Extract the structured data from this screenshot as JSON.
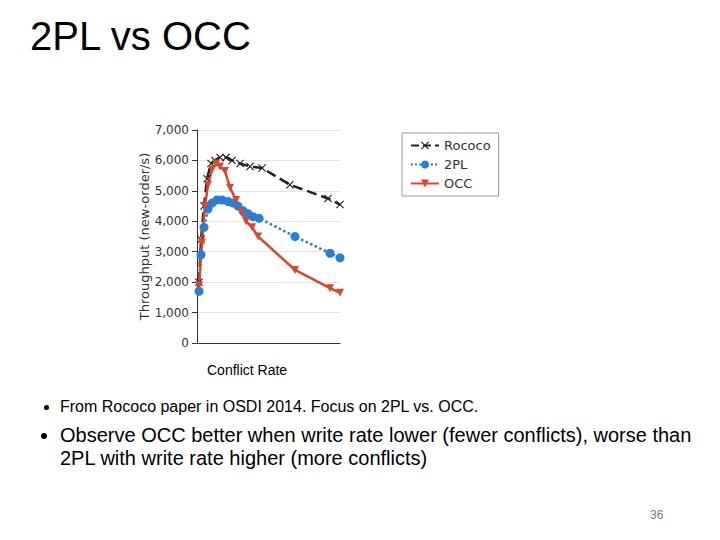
{
  "title": "2PL vs OCC",
  "chart_data": {
    "type": "line",
    "x_label": "Conflict Rate",
    "y_label": "Throughput (new-order/s)",
    "xlim": [
      0,
      100
    ],
    "ylim": [
      0,
      7000
    ],
    "yticks": [
      0,
      1000,
      2000,
      3000,
      4000,
      5000,
      6000,
      7000
    ],
    "tick_labels": "y",
    "grid": true,
    "legend": "right",
    "series": [
      {
        "name": "Rococo",
        "color": "#222222",
        "marker": "x",
        "line_style": "dashed",
        "x": [
          1.4,
          2.8,
          4.9,
          7.0,
          9.8,
          12.6,
          16.1,
          20.3,
          24.5,
          30.1,
          37.1,
          45.5,
          65.0,
          91.6,
          100
        ],
        "values": [
          2000,
          3400,
          4500,
          5400,
          5900,
          6000,
          6100,
          6100,
          6000,
          5900,
          5800,
          5750,
          5200,
          4750,
          4550
        ]
      },
      {
        "name": "2PL",
        "color": "#2a7fd4",
        "marker": "circle",
        "line_style": "dotted",
        "x": [
          1.4,
          2.8,
          4.9,
          7.7,
          10.5,
          14.0,
          17.5,
          21.7,
          25.2,
          28.7,
          32.2,
          35.7,
          39.2,
          43.4,
          68.5,
          93.0,
          100
        ],
        "values": [
          1700,
          2900,
          3800,
          4400,
          4600,
          4700,
          4700,
          4650,
          4600,
          4500,
          4350,
          4250,
          4150,
          4100,
          3500,
          2950,
          2800
        ]
      },
      {
        "name": "OCC",
        "color": "#d9482b",
        "marker": "triangle-down",
        "line_style": "solid",
        "x": [
          1.4,
          3.5,
          5.6,
          7.7,
          10.5,
          13.3,
          16.1,
          19.6,
          23.1,
          27.3,
          30.8,
          34.3,
          38.5,
          42.7,
          68.5,
          93.0,
          100
        ],
        "values": [
          1900,
          3300,
          4500,
          5200,
          5700,
          5900,
          5800,
          5650,
          5100,
          4700,
          4300,
          4000,
          3800,
          3500,
          2400,
          1800,
          1650
        ]
      }
    ]
  },
  "bullets": [
    "From Rococo paper in OSDI 2014.  Focus on 2PL vs. OCC.",
    "Observe OCC better when write rate lower (fewer conflicts), worse than 2PL with write rate higher (more conflicts)"
  ],
  "page_number": 36
}
